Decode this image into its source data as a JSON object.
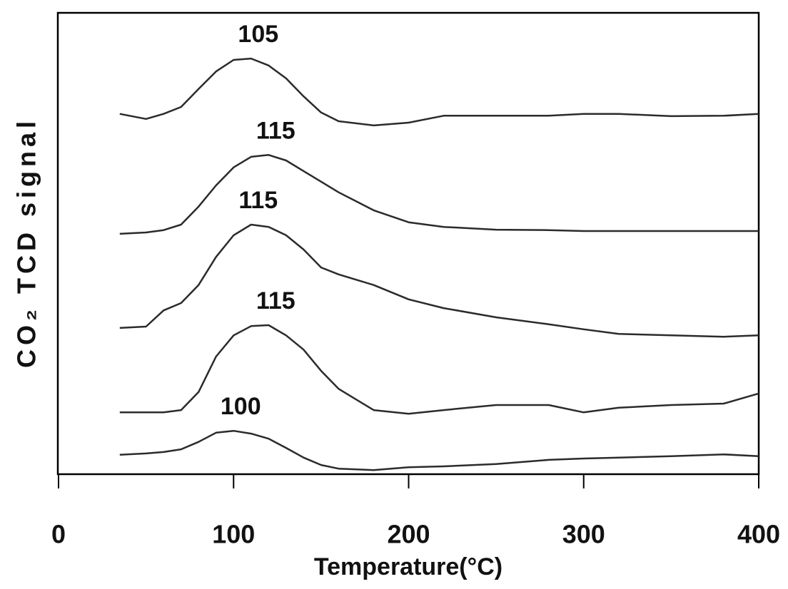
{
  "chart_data": {
    "type": "line",
    "y_label": "CO₂ TCD signal",
    "x_label": "Temperature(°C)",
    "x": [
      35,
      50,
      60,
      70,
      80,
      90,
      100,
      110,
      120,
      130,
      140,
      150,
      160,
      180,
      200,
      220,
      250,
      280,
      300,
      320,
      350,
      380,
      400
    ],
    "xlim": [
      0,
      400
    ],
    "xticks": [
      0,
      100,
      200,
      300,
      400
    ],
    "ylim": [
      0,
      100
    ],
    "color": "#2b2b2b",
    "series": [
      {
        "label": "105",
        "values": [
          78.1,
          77.0,
          78.1,
          79.6,
          83.5,
          87.3,
          89.8,
          90.1,
          88.6,
          85.8,
          81.9,
          78.4,
          76.5,
          75.6,
          76.2,
          77.7,
          77.7,
          77.7,
          78.1,
          78.1,
          77.6,
          77.7,
          78.1
        ]
      },
      {
        "label": "115",
        "values": [
          52.1,
          52.4,
          52.9,
          54.1,
          58.0,
          62.6,
          66.5,
          68.8,
          69.2,
          68.0,
          65.7,
          63.4,
          61.1,
          57.2,
          54.6,
          53.6,
          53.0,
          52.9,
          52.7,
          52.7,
          52.7,
          52.7,
          52.7
        ]
      },
      {
        "label": "115",
        "values": [
          31.7,
          32.0,
          35.5,
          37.1,
          41.0,
          47.1,
          51.8,
          54.1,
          53.6,
          51.8,
          48.7,
          44.8,
          43.3,
          41.0,
          37.9,
          36.0,
          34.0,
          32.5,
          31.4,
          30.4,
          30.1,
          29.8,
          30.1
        ]
      },
      {
        "label": "115",
        "values": [
          13.4,
          13.4,
          13.4,
          13.9,
          17.8,
          25.5,
          30.1,
          32.1,
          32.3,
          30.1,
          27.0,
          22.4,
          18.5,
          13.9,
          13.1,
          13.9,
          15.0,
          15.0,
          13.4,
          14.4,
          15.0,
          15.3,
          17.5
        ]
      },
      {
        "label": "100",
        "values": [
          4.2,
          4.5,
          4.8,
          5.4,
          7.0,
          9.0,
          9.4,
          8.8,
          7.7,
          5.7,
          3.6,
          2.0,
          1.2,
          0.9,
          1.5,
          1.7,
          2.2,
          3.1,
          3.4,
          3.6,
          3.9,
          4.3,
          3.9
        ]
      }
    ]
  }
}
